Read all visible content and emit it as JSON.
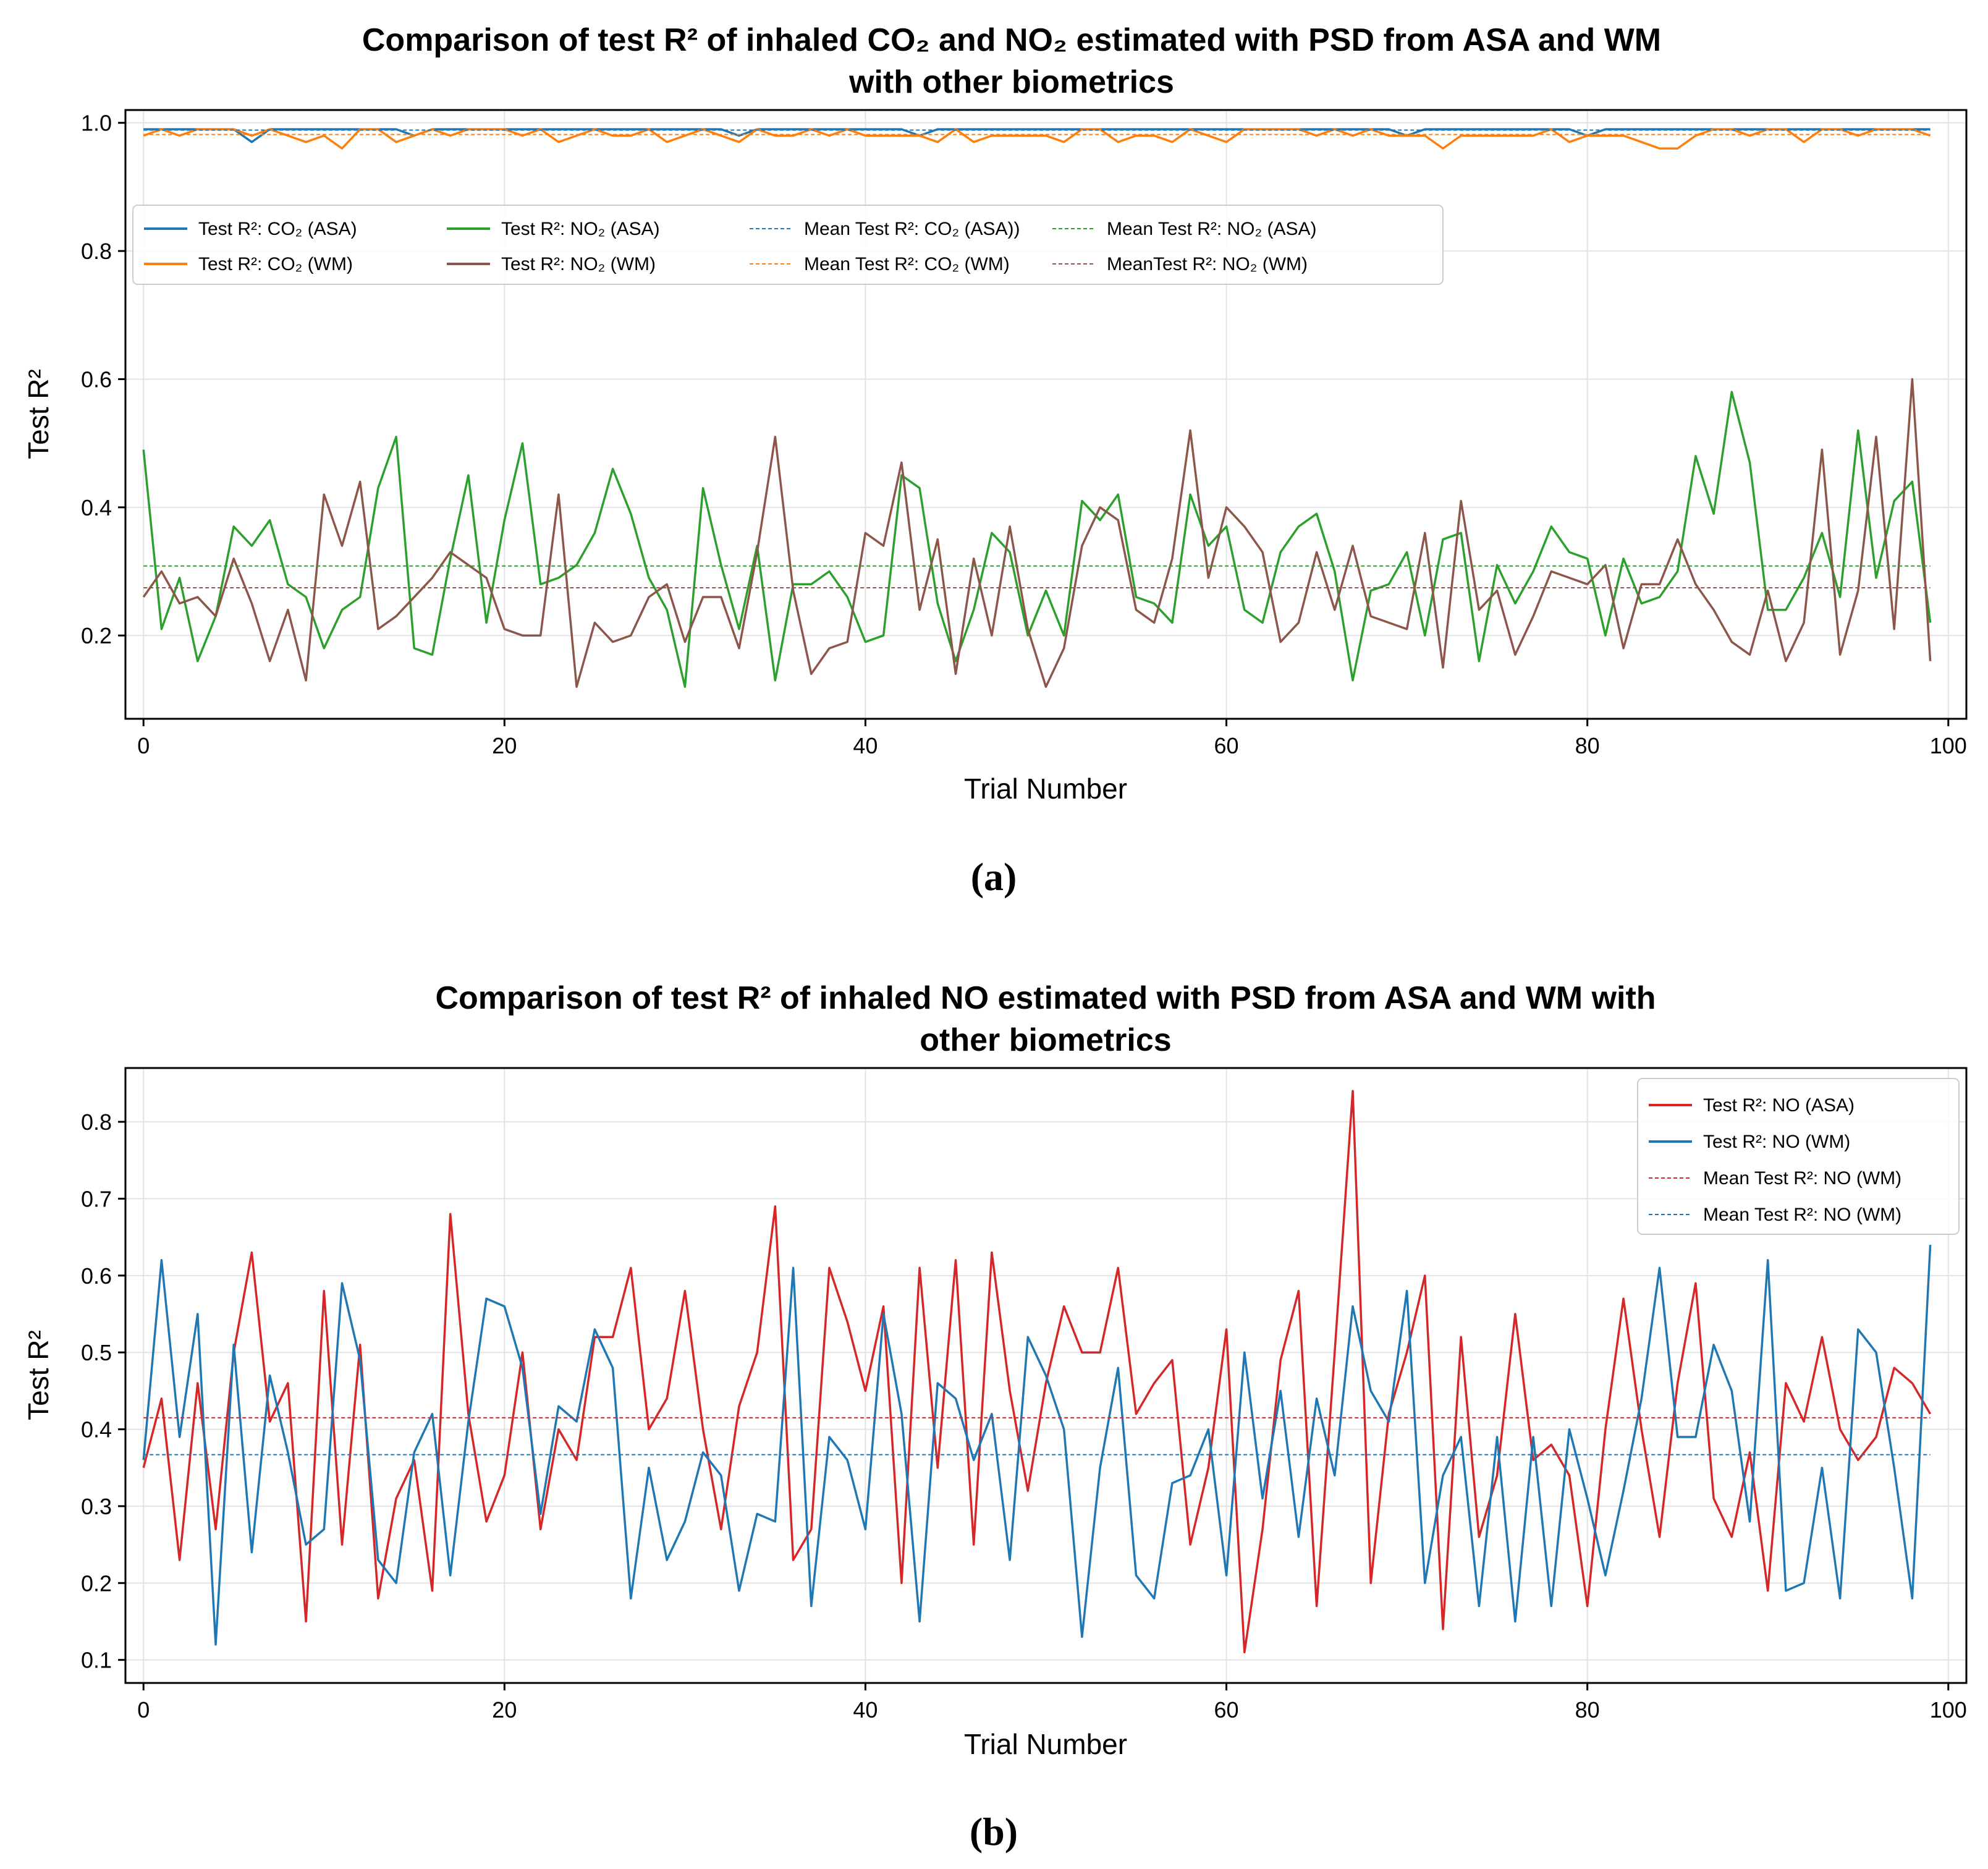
{
  "chart_data": [
    {
      "type": "line",
      "caption": "(a)",
      "title_line1": "Comparison of test R² of inhaled CO₂ and NO₂ estimated with PSD from ASA and WM",
      "title_line2": "with other biometrics",
      "xlabel": "Trial Number",
      "ylabel": "Test R²",
      "xlim": [
        -1,
        101
      ],
      "ylim": [
        0.07,
        1.02
      ],
      "xticks": [
        0,
        20,
        40,
        60,
        80,
        100
      ],
      "yticks": [
        0.2,
        0.4,
        0.6,
        0.8,
        1.0
      ],
      "ytick_labels": [
        "0.2",
        "0.4",
        "0.6",
        "0.8",
        "1.0"
      ],
      "grid": true,
      "legend_position": "upper-left, 4 columns",
      "series": [
        {
          "name": "Test R²: CO₂ (ASA)",
          "color": "#1f77b4",
          "style": "solid",
          "values": [
            0.99,
            0.99,
            0.99,
            0.99,
            0.99,
            0.99,
            0.97,
            0.99,
            0.99,
            0.99,
            0.99,
            0.99,
            0.99,
            0.99,
            0.99,
            0.98,
            0.99,
            0.99,
            0.99,
            0.99,
            0.99,
            0.99,
            0.99,
            0.99,
            0.99,
            0.99,
            0.99,
            0.99,
            0.99,
            0.99,
            0.99,
            0.99,
            0.99,
            0.98,
            0.99,
            0.99,
            0.99,
            0.99,
            0.99,
            0.99,
            0.99,
            0.99,
            0.99,
            0.98,
            0.99,
            0.99,
            0.99,
            0.99,
            0.99,
            0.99,
            0.99,
            0.99,
            0.99,
            0.99,
            0.99,
            0.99,
            0.99,
            0.99,
            0.99,
            0.99,
            0.99,
            0.99,
            0.99,
            0.99,
            0.99,
            0.99,
            0.99,
            0.99,
            0.99,
            0.99,
            0.98,
            0.99,
            0.99,
            0.99,
            0.99,
            0.99,
            0.99,
            0.99,
            0.99,
            0.99,
            0.98,
            0.99,
            0.99,
            0.99,
            0.99,
            0.99,
            0.99,
            0.99,
            0.99,
            0.99,
            0.99,
            0.99,
            0.99,
            0.99,
            0.99,
            0.99,
            0.99,
            0.99,
            0.99,
            0.99
          ]
        },
        {
          "name": "Test R²: CO₂ (WM)",
          "color": "#ff7f0e",
          "style": "solid",
          "values": [
            0.98,
            0.99,
            0.98,
            0.99,
            0.99,
            0.99,
            0.98,
            0.99,
            0.98,
            0.97,
            0.98,
            0.96,
            0.99,
            0.99,
            0.97,
            0.98,
            0.99,
            0.98,
            0.99,
            0.99,
            0.99,
            0.98,
            0.99,
            0.97,
            0.98,
            0.99,
            0.98,
            0.98,
            0.99,
            0.97,
            0.98,
            0.99,
            0.98,
            0.97,
            0.99,
            0.98,
            0.98,
            0.99,
            0.98,
            0.99,
            0.98,
            0.98,
            0.98,
            0.98,
            0.97,
            0.99,
            0.97,
            0.98,
            0.98,
            0.98,
            0.98,
            0.97,
            0.99,
            0.99,
            0.97,
            0.98,
            0.98,
            0.97,
            0.99,
            0.98,
            0.97,
            0.99,
            0.99,
            0.99,
            0.99,
            0.98,
            0.99,
            0.98,
            0.99,
            0.98,
            0.98,
            0.98,
            0.96,
            0.98,
            0.98,
            0.98,
            0.98,
            0.98,
            0.99,
            0.97,
            0.98,
            0.98,
            0.98,
            0.97,
            0.96,
            0.96,
            0.98,
            0.99,
            0.99,
            0.98,
            0.99,
            0.99,
            0.97,
            0.99,
            0.99,
            0.98,
            0.99,
            0.99,
            0.99,
            0.98
          ]
        },
        {
          "name": "Test R²: NO₂ (ASA)",
          "color": "#2ca02c",
          "style": "solid",
          "values": [
            0.49,
            0.21,
            0.29,
            0.16,
            0.23,
            0.37,
            0.34,
            0.38,
            0.28,
            0.26,
            0.18,
            0.24,
            0.26,
            0.43,
            0.51,
            0.18,
            0.17,
            0.32,
            0.45,
            0.22,
            0.38,
            0.5,
            0.28,
            0.29,
            0.31,
            0.36,
            0.46,
            0.39,
            0.29,
            0.24,
            0.12,
            0.43,
            0.31,
            0.21,
            0.34,
            0.13,
            0.28,
            0.28,
            0.3,
            0.26,
            0.19,
            0.2,
            0.45,
            0.43,
            0.25,
            0.16,
            0.24,
            0.36,
            0.33,
            0.2,
            0.27,
            0.2,
            0.41,
            0.38,
            0.42,
            0.26,
            0.25,
            0.22,
            0.42,
            0.34,
            0.37,
            0.24,
            0.22,
            0.33,
            0.37,
            0.39,
            0.3,
            0.13,
            0.27,
            0.28,
            0.33,
            0.2,
            0.35,
            0.36,
            0.16,
            0.31,
            0.25,
            0.3,
            0.37,
            0.33,
            0.32,
            0.2,
            0.32,
            0.25,
            0.26,
            0.3,
            0.48,
            0.39,
            0.58,
            0.47,
            0.24,
            0.24,
            0.29,
            0.36,
            0.26,
            0.52,
            0.29,
            0.41,
            0.44,
            0.22
          ]
        },
        {
          "name": "Test R²: NO₂ (WM)",
          "color": "#8c564b",
          "style": "solid",
          "values": [
            0.26,
            0.3,
            0.25,
            0.26,
            0.23,
            0.32,
            0.25,
            0.16,
            0.24,
            0.13,
            0.42,
            0.34,
            0.44,
            0.21,
            0.23,
            0.26,
            0.29,
            0.33,
            0.31,
            0.29,
            0.21,
            0.2,
            0.2,
            0.42,
            0.12,
            0.22,
            0.19,
            0.2,
            0.26,
            0.28,
            0.19,
            0.26,
            0.26,
            0.18,
            0.33,
            0.51,
            0.27,
            0.14,
            0.18,
            0.19,
            0.36,
            0.34,
            0.47,
            0.24,
            0.35,
            0.14,
            0.32,
            0.2,
            0.37,
            0.21,
            0.12,
            0.18,
            0.34,
            0.4,
            0.38,
            0.24,
            0.22,
            0.32,
            0.52,
            0.29,
            0.4,
            0.37,
            0.33,
            0.19,
            0.22,
            0.33,
            0.24,
            0.34,
            0.23,
            0.22,
            0.21,
            0.36,
            0.15,
            0.41,
            0.24,
            0.27,
            0.17,
            0.23,
            0.3,
            0.29,
            0.28,
            0.31,
            0.18,
            0.28,
            0.28,
            0.35,
            0.28,
            0.24,
            0.19,
            0.17,
            0.27,
            0.16,
            0.22,
            0.49,
            0.17,
            0.27,
            0.51,
            0.21,
            0.6,
            0.16
          ]
        },
        {
          "name": "Mean Test R²: CO₂ (ASA))",
          "color": "#1f77b4",
          "style": "dashed",
          "mean": 0.9887
        },
        {
          "name": "Mean Test R²: CO₂ (WM)",
          "color": "#ff7f0e",
          "style": "dashed",
          "mean": 0.9818
        },
        {
          "name": "Mean Test R²: NO₂ (ASA)",
          "color": "#2ca02c",
          "style": "dashed",
          "mean": 0.3085
        },
        {
          "name": "MeanTest R²: NO₂ (WM)",
          "color": "#8c564b",
          "style": "dashed",
          "mean": 0.2745
        }
      ]
    },
    {
      "type": "line",
      "caption": "(b)",
      "title_line1": "Comparison of test R² of inhaled NO estimated with PSD from ASA and WM with",
      "title_line2": "other biometrics",
      "xlabel": "Trial Number",
      "ylabel": "Test R²",
      "xlim": [
        -1,
        101
      ],
      "ylim": [
        0.07,
        0.87
      ],
      "xticks": [
        0,
        20,
        40,
        60,
        80,
        100
      ],
      "yticks": [
        0.1,
        0.2,
        0.3,
        0.4,
        0.5,
        0.6,
        0.7,
        0.8
      ],
      "ytick_labels": [
        "0.1",
        "0.2",
        "0.3",
        "0.4",
        "0.5",
        "0.6",
        "0.7",
        "0.8"
      ],
      "grid": true,
      "legend_position": "upper-right",
      "series": [
        {
          "name": "Test R²: NO (ASA)",
          "color": "#d62728",
          "style": "solid",
          "values": [
            0.35,
            0.44,
            0.23,
            0.46,
            0.27,
            0.5,
            0.63,
            0.41,
            0.46,
            0.15,
            0.58,
            0.25,
            0.51,
            0.18,
            0.31,
            0.36,
            0.19,
            0.68,
            0.42,
            0.28,
            0.34,
            0.5,
            0.27,
            0.4,
            0.36,
            0.52,
            0.52,
            0.61,
            0.4,
            0.44,
            0.58,
            0.4,
            0.27,
            0.43,
            0.5,
            0.69,
            0.23,
            0.27,
            0.61,
            0.54,
            0.45,
            0.56,
            0.2,
            0.61,
            0.35,
            0.62,
            0.25,
            0.63,
            0.45,
            0.32,
            0.46,
            0.56,
            0.5,
            0.5,
            0.61,
            0.42,
            0.46,
            0.49,
            0.25,
            0.35,
            0.53,
            0.11,
            0.27,
            0.49,
            0.58,
            0.17,
            0.5,
            0.84,
            0.2,
            0.42,
            0.5,
            0.6,
            0.14,
            0.52,
            0.26,
            0.34,
            0.55,
            0.36,
            0.38,
            0.34,
            0.17,
            0.4,
            0.57,
            0.4,
            0.26,
            0.46,
            0.59,
            0.31,
            0.26,
            0.37,
            0.19,
            0.46,
            0.41,
            0.52,
            0.4,
            0.36,
            0.39,
            0.48,
            0.46,
            0.42
          ]
        },
        {
          "name": "Test R²: NO (WM)",
          "color": "#1f77b4",
          "style": "solid",
          "values": [
            0.36,
            0.62,
            0.39,
            0.55,
            0.12,
            0.51,
            0.24,
            0.47,
            0.37,
            0.25,
            0.27,
            0.59,
            0.49,
            0.23,
            0.2,
            0.37,
            0.42,
            0.21,
            0.41,
            0.57,
            0.56,
            0.48,
            0.29,
            0.43,
            0.41,
            0.53,
            0.48,
            0.18,
            0.35,
            0.23,
            0.28,
            0.37,
            0.34,
            0.19,
            0.29,
            0.28,
            0.61,
            0.17,
            0.39,
            0.36,
            0.27,
            0.55,
            0.42,
            0.15,
            0.46,
            0.44,
            0.36,
            0.42,
            0.23,
            0.52,
            0.47,
            0.4,
            0.13,
            0.35,
            0.48,
            0.21,
            0.18,
            0.33,
            0.34,
            0.4,
            0.21,
            0.5,
            0.31,
            0.45,
            0.26,
            0.44,
            0.34,
            0.56,
            0.45,
            0.41,
            0.58,
            0.2,
            0.34,
            0.39,
            0.17,
            0.39,
            0.15,
            0.39,
            0.17,
            0.4,
            0.31,
            0.21,
            0.32,
            0.44,
            0.61,
            0.39,
            0.39,
            0.51,
            0.45,
            0.28,
            0.62,
            0.19,
            0.2,
            0.35,
            0.18,
            0.53,
            0.5,
            0.35,
            0.18,
            0.64
          ]
        },
        {
          "name": "Mean Test R²: NO (WM)",
          "color": "#d62728",
          "style": "dashed",
          "mean": 0.415
        },
        {
          "name": "Mean Test R²: NO (WM)",
          "color": "#1f77b4",
          "style": "dashed",
          "mean": 0.367
        }
      ]
    }
  ]
}
